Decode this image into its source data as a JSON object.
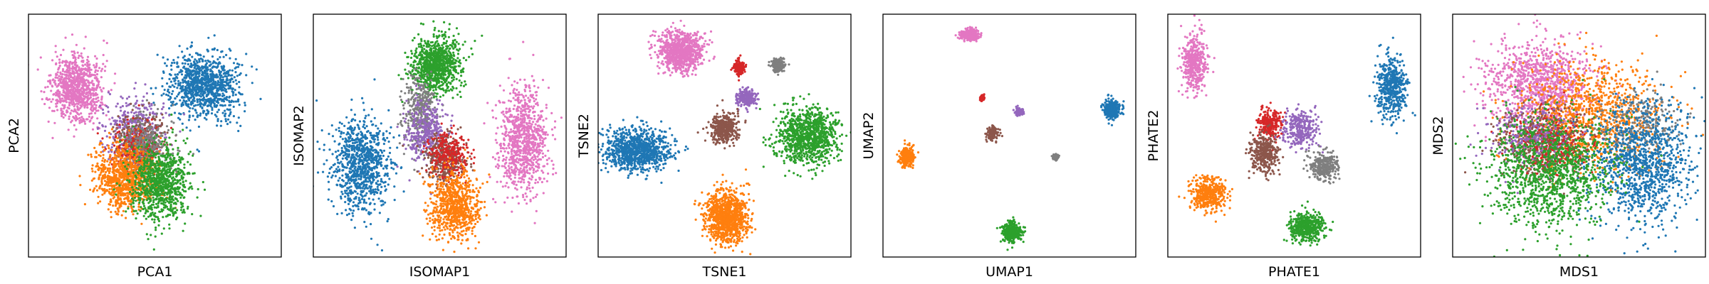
{
  "figure": {
    "description_colors": {
      "blue": "#1f77b4",
      "orange": "#ff7f0e",
      "green": "#2ca02c",
      "red": "#d62728",
      "purple": "#9467bd",
      "brown": "#8c564b",
      "pink": "#e377c2",
      "gray": "#7f7f7f"
    }
  },
  "chart_data": [
    {
      "type": "scatter",
      "title": "",
      "xlabel": "PCA1",
      "ylabel": "PCA2",
      "xlim": [
        0,
        100
      ],
      "ylim": [
        0,
        100
      ],
      "ticks": false,
      "grid": false,
      "clusters": [
        {
          "color": "#e377c2",
          "cx": 18,
          "cy": 70,
          "sx": 5,
          "sy": 7,
          "n": 900
        },
        {
          "color": "#1f77b4",
          "cx": 70,
          "cy": 72,
          "sx": 7,
          "sy": 7,
          "n": 1000
        },
        {
          "color": "#9467bd",
          "cx": 42,
          "cy": 52,
          "sx": 6,
          "sy": 7,
          "n": 400
        },
        {
          "color": "#8c564b",
          "cx": 44,
          "cy": 48,
          "sx": 5,
          "sy": 6,
          "n": 300
        },
        {
          "color": "#d62728",
          "cx": 42,
          "cy": 44,
          "sx": 5,
          "sy": 5,
          "n": 250
        },
        {
          "color": "#7f7f7f",
          "cx": 46,
          "cy": 46,
          "sx": 5,
          "sy": 6,
          "n": 250
        },
        {
          "color": "#ff7f0e",
          "cx": 38,
          "cy": 32,
          "sx": 6,
          "sy": 7,
          "n": 900
        },
        {
          "color": "#2ca02c",
          "cx": 52,
          "cy": 30,
          "sx": 6,
          "sy": 8,
          "n": 900
        }
      ]
    },
    {
      "type": "scatter",
      "title": "",
      "xlabel": "ISOMAP1",
      "ylabel": "ISOMAP2",
      "xlim": [
        0,
        100
      ],
      "ylim": [
        0,
        100
      ],
      "ticks": false,
      "grid": false,
      "clusters": [
        {
          "color": "#1f77b4",
          "cx": 18,
          "cy": 38,
          "sx": 6,
          "sy": 10,
          "n": 900
        },
        {
          "color": "#2ca02c",
          "cx": 48,
          "cy": 80,
          "sx": 5,
          "sy": 6,
          "n": 900
        },
        {
          "color": "#7f7f7f",
          "cx": 42,
          "cy": 60,
          "sx": 3,
          "sy": 8,
          "n": 350
        },
        {
          "color": "#9467bd",
          "cx": 44,
          "cy": 52,
          "sx": 4,
          "sy": 6,
          "n": 350
        },
        {
          "color": "#8c564b",
          "cx": 52,
          "cy": 40,
          "sx": 4,
          "sy": 5,
          "n": 400
        },
        {
          "color": "#d62728",
          "cx": 54,
          "cy": 42,
          "sx": 4,
          "sy": 5,
          "n": 250
        },
        {
          "color": "#ff7f0e",
          "cx": 56,
          "cy": 20,
          "sx": 5,
          "sy": 7,
          "n": 800
        },
        {
          "color": "#e377c2",
          "cx": 84,
          "cy": 48,
          "sx": 5,
          "sy": 11,
          "n": 900
        }
      ]
    },
    {
      "type": "scatter",
      "title": "",
      "xlabel": "TSNE1",
      "ylabel": "TSNE2",
      "xlim": [
        0,
        100
      ],
      "ylim": [
        0,
        100
      ],
      "ticks": false,
      "grid": false,
      "clusters": [
        {
          "color": "#e377c2",
          "cx": 32,
          "cy": 86,
          "sx": 4.5,
          "sy": 4.2,
          "n": 900
        },
        {
          "color": "#d62728",
          "cx": 56,
          "cy": 79,
          "sx": 1.2,
          "sy": 1.4,
          "n": 200
        },
        {
          "color": "#7f7f7f",
          "cx": 72,
          "cy": 80,
          "sx": 1.4,
          "sy": 1.4,
          "n": 200
        },
        {
          "color": "#9467bd",
          "cx": 59,
          "cy": 66,
          "sx": 1.8,
          "sy": 1.8,
          "n": 250
        },
        {
          "color": "#8c564b",
          "cx": 50,
          "cy": 53,
          "sx": 2.8,
          "sy": 3.0,
          "n": 400
        },
        {
          "color": "#1f77b4",
          "cx": 14,
          "cy": 44,
          "sx": 7,
          "sy": 4.5,
          "n": 1000
        },
        {
          "color": "#2ca02c",
          "cx": 84,
          "cy": 50,
          "sx": 6.5,
          "sy": 6,
          "n": 1000
        },
        {
          "color": "#ff7f0e",
          "cx": 51,
          "cy": 15,
          "sx": 4.5,
          "sy": 5.5,
          "n": 1000
        }
      ]
    },
    {
      "type": "scatter",
      "title": "",
      "xlabel": "UMAP1",
      "ylabel": "UMAP2",
      "xlim": [
        0,
        100
      ],
      "ylim": [
        0,
        100
      ],
      "ticks": false,
      "grid": false,
      "clusters": [
        {
          "color": "#e377c2",
          "cx": 34,
          "cy": 93,
          "sx": 1.8,
          "sy": 1.2,
          "n": 300
        },
        {
          "color": "#d62728",
          "cx": 39,
          "cy": 66,
          "sx": 0.5,
          "sy": 0.6,
          "n": 60
        },
        {
          "color": "#9467bd",
          "cx": 54,
          "cy": 60,
          "sx": 0.9,
          "sy": 0.9,
          "n": 90
        },
        {
          "color": "#8c564b",
          "cx": 43,
          "cy": 51,
          "sx": 1.2,
          "sy": 1.4,
          "n": 120
        },
        {
          "color": "#7f7f7f",
          "cx": 69,
          "cy": 41,
          "sx": 0.6,
          "sy": 0.6,
          "n": 60
        },
        {
          "color": "#1f77b4",
          "cx": 92,
          "cy": 61,
          "sx": 1.8,
          "sy": 2.0,
          "n": 300
        },
        {
          "color": "#ff7f0e",
          "cx": 8,
          "cy": 41,
          "sx": 1.5,
          "sy": 2.2,
          "n": 300
        },
        {
          "color": "#2ca02c",
          "cx": 51,
          "cy": 9,
          "sx": 2.0,
          "sy": 2.2,
          "n": 300
        }
      ]
    },
    {
      "type": "scatter",
      "title": "",
      "xlabel": "PHATE1",
      "ylabel": "PHATE2",
      "xlim": [
        0,
        100
      ],
      "ylim": [
        0,
        100
      ],
      "ticks": false,
      "grid": false,
      "clusters": [
        {
          "color": "#e377c2",
          "cx": 9,
          "cy": 82,
          "sx": 2.5,
          "sy": 6.5,
          "n": 450
        },
        {
          "color": "#1f77b4",
          "cx": 90,
          "cy": 71,
          "sx": 3.0,
          "sy": 6.5,
          "n": 500
        },
        {
          "color": "#d62728",
          "cx": 40,
          "cy": 55,
          "sx": 2.5,
          "sy": 3.0,
          "n": 250
        },
        {
          "color": "#8c564b",
          "cx": 38,
          "cy": 42,
          "sx": 3.0,
          "sy": 4.0,
          "n": 350
        },
        {
          "color": "#9467bd",
          "cx": 52,
          "cy": 53,
          "sx": 3.5,
          "sy": 4.0,
          "n": 300
        },
        {
          "color": "#7f7f7f",
          "cx": 62,
          "cy": 37,
          "sx": 3.0,
          "sy": 3.0,
          "n": 300
        },
        {
          "color": "#ff7f0e",
          "cx": 15,
          "cy": 25,
          "sx": 3.5,
          "sy": 3.5,
          "n": 450
        },
        {
          "color": "#2ca02c",
          "cx": 55,
          "cy": 11,
          "sx": 3.5,
          "sy": 3.0,
          "n": 450
        }
      ]
    },
    {
      "type": "scatter",
      "title": "",
      "xlabel": "MDS1",
      "ylabel": "MDS2",
      "xlim": [
        0,
        100
      ],
      "ylim": [
        0,
        100
      ],
      "ticks": false,
      "grid": false,
      "clusters": [
        {
          "color": "#e377c2",
          "cx": 34,
          "cy": 72,
          "sx": 11,
          "sy": 9,
          "n": 1000
        },
        {
          "color": "#ff7f0e",
          "cx": 55,
          "cy": 58,
          "sx": 15,
          "sy": 12,
          "n": 1100
        },
        {
          "color": "#8c564b",
          "cx": 35,
          "cy": 48,
          "sx": 9,
          "sy": 7,
          "n": 500
        },
        {
          "color": "#d62728",
          "cx": 38,
          "cy": 46,
          "sx": 8,
          "sy": 6,
          "n": 300
        },
        {
          "color": "#9467bd",
          "cx": 30,
          "cy": 50,
          "sx": 9,
          "sy": 7,
          "n": 250
        },
        {
          "color": "#7f7f7f",
          "cx": 75,
          "cy": 54,
          "sx": 8,
          "sy": 7,
          "n": 250
        },
        {
          "color": "#1f77b4",
          "cx": 76,
          "cy": 38,
          "sx": 10,
          "sy": 13,
          "n": 1100
        },
        {
          "color": "#2ca02c",
          "cx": 38,
          "cy": 34,
          "sx": 13,
          "sy": 12,
          "n": 1200
        }
      ]
    }
  ]
}
